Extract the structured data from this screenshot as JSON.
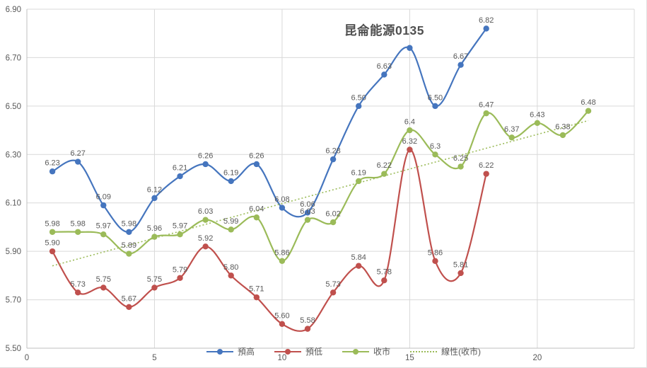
{
  "title": "昆侖能源0135",
  "colors": {
    "grid": "#d9d9d9",
    "axis": "#bfbfbf",
    "tick_text": "#595959",
    "label_text": "#595959",
    "title_text": "#4f4f4f"
  },
  "axes": {
    "yticks": [
      "5.50",
      "5.70",
      "5.90",
      "6.10",
      "6.30",
      "6.50",
      "6.70",
      "6.90"
    ],
    "xticks": [
      "0",
      "5",
      "10",
      "15",
      "20"
    ]
  },
  "chart_data": {
    "type": "line",
    "title": "昆侖能源0135",
    "xlabel": "",
    "ylabel": "",
    "xlim": [
      0,
      23.8
    ],
    "ylim": [
      5.5,
      6.9
    ],
    "ytick_step": 0.2,
    "xticks": [
      0,
      5,
      10,
      15,
      20
    ],
    "grid": true,
    "legend_position": "bottom",
    "x": [
      1,
      2,
      3,
      4,
      5,
      6,
      7,
      8,
      9,
      10,
      11,
      12,
      13,
      14,
      15,
      16,
      17,
      18,
      19,
      20,
      21,
      22
    ],
    "series": [
      {
        "key": "high",
        "name": "預高",
        "color": "#4575be",
        "line": "solid",
        "marker": true,
        "values": [
          6.23,
          6.27,
          6.09,
          5.98,
          6.12,
          6.21,
          6.26,
          6.19,
          6.26,
          6.08,
          6.06,
          6.28,
          6.5,
          6.63,
          6.74,
          6.5,
          6.67,
          6.82
        ],
        "labels": [
          "6.23",
          "6.27",
          "6.09",
          "5.98",
          "6.12",
          "6.21",
          "6.26",
          "6.19",
          "6.26",
          "6.08",
          "6.06",
          "6.28",
          "6.50",
          "6.63",
          null,
          "6.50",
          "6.67",
          "6.82"
        ]
      },
      {
        "key": "low",
        "name": "預低",
        "color": "#c0504d",
        "line": "solid",
        "marker": true,
        "values": [
          5.9,
          5.73,
          5.75,
          5.67,
          5.75,
          5.79,
          5.92,
          5.8,
          5.71,
          5.6,
          5.58,
          5.73,
          5.84,
          5.78,
          6.32,
          5.86,
          5.81,
          6.22
        ],
        "labels": [
          "5.90",
          "5.73",
          "5.75",
          "5.67",
          "5.75",
          "5.79",
          "5.92",
          "5.80",
          "5.71",
          "5.60",
          "5.58",
          "5.73",
          "5.84",
          "5.78",
          "6.32",
          "5.86",
          "5.81",
          "6.22"
        ]
      },
      {
        "key": "close",
        "name": "收市",
        "color": "#9bbb59",
        "line": "solid",
        "marker": true,
        "values": [
          5.98,
          5.98,
          5.97,
          5.89,
          5.96,
          5.97,
          6.03,
          5.99,
          6.04,
          5.86,
          6.03,
          6.02,
          6.19,
          6.22,
          6.4,
          6.3,
          6.25,
          6.47,
          6.37,
          6.43,
          6.38,
          6.48
        ],
        "labels": [
          "5.98",
          "5.98",
          "5.97",
          "5.89",
          "5.96",
          "5.97",
          "6.03",
          "5.99",
          "6.04",
          "5.86",
          "6.03",
          "6.02",
          "6.19",
          "6.22",
          "6.4",
          "6.3",
          "6.25",
          "6.47",
          "6.37",
          "6.43",
          "6.38",
          "6.48"
        ]
      },
      {
        "key": "trend",
        "name": "線性(收市)",
        "color": "#9bbb59",
        "line": "dotted",
        "marker": false,
        "trend_from": {
          "x": 1,
          "value": 5.84
        },
        "trend_to": {
          "x": 22,
          "value": 6.44
        }
      }
    ]
  }
}
